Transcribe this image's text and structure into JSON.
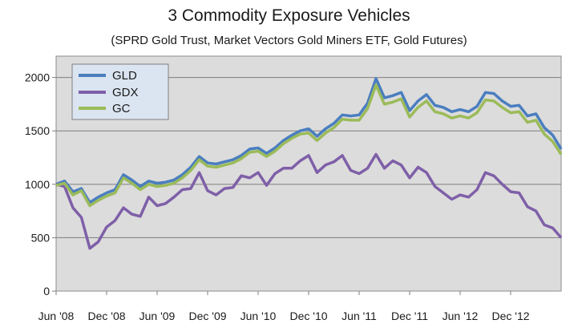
{
  "chart_data": {
    "type": "line",
    "title": "3 Commodity Exposure Vehicles",
    "subtitle": "(SPRD Gold Trust, Market Vectors Gold Miners ETF, Gold Futures)",
    "xlabel": "",
    "ylabel": "",
    "ylim": [
      0,
      2100
    ],
    "yticks": [
      0,
      500,
      1000,
      1500,
      2000
    ],
    "xlim": [
      "2008-06",
      "2013-06"
    ],
    "xticks": [
      "Jun '08",
      "Dec '08",
      "Jun '09",
      "Dec '09",
      "Jun '10",
      "Dec '10",
      "Jun '11",
      "Dec '11",
      "Jun '12",
      "Dec '12"
    ],
    "grid": "horizontal",
    "legend": "top-left",
    "series": [
      {
        "name": "GLD",
        "color": "#4a7ebf",
        "points": [
          [
            "2008-06",
            1000
          ],
          [
            "2008-07",
            1030
          ],
          [
            "2008-08",
            930
          ],
          [
            "2008-09",
            960
          ],
          [
            "2008-10",
            830
          ],
          [
            "2008-11",
            880
          ],
          [
            "2008-12",
            920
          ],
          [
            "2009-01",
            950
          ],
          [
            "2009-02",
            1090
          ],
          [
            "2009-03",
            1040
          ],
          [
            "2009-04",
            980
          ],
          [
            "2009-05",
            1030
          ],
          [
            "2009-06",
            1010
          ],
          [
            "2009-07",
            1020
          ],
          [
            "2009-08",
            1040
          ],
          [
            "2009-09",
            1090
          ],
          [
            "2009-10",
            1160
          ],
          [
            "2009-11",
            1260
          ],
          [
            "2009-12",
            1200
          ],
          [
            "2010-01",
            1190
          ],
          [
            "2010-02",
            1210
          ],
          [
            "2010-03",
            1230
          ],
          [
            "2010-04",
            1270
          ],
          [
            "2010-05",
            1330
          ],
          [
            "2010-06",
            1340
          ],
          [
            "2010-07",
            1290
          ],
          [
            "2010-08",
            1340
          ],
          [
            "2010-09",
            1410
          ],
          [
            "2010-10",
            1460
          ],
          [
            "2010-11",
            1500
          ],
          [
            "2010-12",
            1520
          ],
          [
            "2011-01",
            1450
          ],
          [
            "2011-02",
            1520
          ],
          [
            "2011-03",
            1570
          ],
          [
            "2011-04",
            1650
          ],
          [
            "2011-05",
            1640
          ],
          [
            "2011-06",
            1650
          ],
          [
            "2011-07",
            1760
          ],
          [
            "2011-08",
            1990
          ],
          [
            "2011-09",
            1810
          ],
          [
            "2011-10",
            1830
          ],
          [
            "2011-11",
            1860
          ],
          [
            "2011-12",
            1690
          ],
          [
            "2012-01",
            1780
          ],
          [
            "2012-02",
            1840
          ],
          [
            "2012-03",
            1740
          ],
          [
            "2012-04",
            1720
          ],
          [
            "2012-05",
            1680
          ],
          [
            "2012-06",
            1700
          ],
          [
            "2012-07",
            1680
          ],
          [
            "2012-08",
            1730
          ],
          [
            "2012-09",
            1860
          ],
          [
            "2012-10",
            1850
          ],
          [
            "2012-11",
            1780
          ],
          [
            "2012-12",
            1730
          ],
          [
            "2013-01",
            1740
          ],
          [
            "2013-02",
            1640
          ],
          [
            "2013-03",
            1660
          ],
          [
            "2013-04",
            1530
          ],
          [
            "2013-05",
            1460
          ],
          [
            "2013-06",
            1330
          ]
        ]
      },
      {
        "name": "GDX",
        "color": "#7f5fa8",
        "points": [
          [
            "2008-06",
            1000
          ],
          [
            "2008-07",
            980
          ],
          [
            "2008-08",
            780
          ],
          [
            "2008-09",
            690
          ],
          [
            "2008-10",
            400
          ],
          [
            "2008-11",
            460
          ],
          [
            "2008-12",
            600
          ],
          [
            "2009-01",
            660
          ],
          [
            "2009-02",
            780
          ],
          [
            "2009-03",
            720
          ],
          [
            "2009-04",
            700
          ],
          [
            "2009-05",
            880
          ],
          [
            "2009-06",
            800
          ],
          [
            "2009-07",
            820
          ],
          [
            "2009-08",
            880
          ],
          [
            "2009-09",
            950
          ],
          [
            "2009-10",
            960
          ],
          [
            "2009-11",
            1110
          ],
          [
            "2009-12",
            940
          ],
          [
            "2010-01",
            900
          ],
          [
            "2010-02",
            960
          ],
          [
            "2010-03",
            970
          ],
          [
            "2010-04",
            1080
          ],
          [
            "2010-05",
            1060
          ],
          [
            "2010-06",
            1110
          ],
          [
            "2010-07",
            990
          ],
          [
            "2010-08",
            1100
          ],
          [
            "2010-09",
            1150
          ],
          [
            "2010-10",
            1150
          ],
          [
            "2010-11",
            1220
          ],
          [
            "2010-12",
            1270
          ],
          [
            "2011-01",
            1110
          ],
          [
            "2011-02",
            1180
          ],
          [
            "2011-03",
            1210
          ],
          [
            "2011-04",
            1270
          ],
          [
            "2011-05",
            1130
          ],
          [
            "2011-06",
            1100
          ],
          [
            "2011-07",
            1150
          ],
          [
            "2011-08",
            1280
          ],
          [
            "2011-09",
            1150
          ],
          [
            "2011-10",
            1220
          ],
          [
            "2011-11",
            1180
          ],
          [
            "2011-12",
            1060
          ],
          [
            "2012-01",
            1160
          ],
          [
            "2012-02",
            1110
          ],
          [
            "2012-03",
            980
          ],
          [
            "2012-04",
            920
          ],
          [
            "2012-05",
            860
          ],
          [
            "2012-06",
            900
          ],
          [
            "2012-07",
            880
          ],
          [
            "2012-08",
            950
          ],
          [
            "2012-09",
            1110
          ],
          [
            "2012-10",
            1080
          ],
          [
            "2012-11",
            1000
          ],
          [
            "2012-12",
            930
          ],
          [
            "2013-01",
            920
          ],
          [
            "2013-02",
            790
          ],
          [
            "2013-03",
            750
          ],
          [
            "2013-04",
            620
          ],
          [
            "2013-05",
            590
          ],
          [
            "2013-06",
            500
          ]
        ]
      },
      {
        "name": "GC",
        "color": "#9bbb59",
        "points": [
          [
            "2008-06",
            990
          ],
          [
            "2008-07",
            1010
          ],
          [
            "2008-08",
            900
          ],
          [
            "2008-09",
            940
          ],
          [
            "2008-10",
            800
          ],
          [
            "2008-11",
            850
          ],
          [
            "2008-12",
            890
          ],
          [
            "2009-01",
            920
          ],
          [
            "2009-02",
            1060
          ],
          [
            "2009-03",
            1010
          ],
          [
            "2009-04",
            950
          ],
          [
            "2009-05",
            1000
          ],
          [
            "2009-06",
            980
          ],
          [
            "2009-07",
            990
          ],
          [
            "2009-08",
            1010
          ],
          [
            "2009-09",
            1060
          ],
          [
            "2009-10",
            1130
          ],
          [
            "2009-11",
            1230
          ],
          [
            "2009-12",
            1170
          ],
          [
            "2010-01",
            1160
          ],
          [
            "2010-02",
            1180
          ],
          [
            "2010-03",
            1200
          ],
          [
            "2010-04",
            1240
          ],
          [
            "2010-05",
            1300
          ],
          [
            "2010-06",
            1310
          ],
          [
            "2010-07",
            1260
          ],
          [
            "2010-08",
            1310
          ],
          [
            "2010-09",
            1380
          ],
          [
            "2010-10",
            1430
          ],
          [
            "2010-11",
            1470
          ],
          [
            "2010-12",
            1480
          ],
          [
            "2011-01",
            1410
          ],
          [
            "2011-02",
            1480
          ],
          [
            "2011-03",
            1530
          ],
          [
            "2011-04",
            1610
          ],
          [
            "2011-05",
            1600
          ],
          [
            "2011-06",
            1600
          ],
          [
            "2011-07",
            1710
          ],
          [
            "2011-08",
            1930
          ],
          [
            "2011-09",
            1750
          ],
          [
            "2011-10",
            1770
          ],
          [
            "2011-11",
            1800
          ],
          [
            "2011-12",
            1630
          ],
          [
            "2012-01",
            1720
          ],
          [
            "2012-02",
            1780
          ],
          [
            "2012-03",
            1680
          ],
          [
            "2012-04",
            1660
          ],
          [
            "2012-05",
            1620
          ],
          [
            "2012-06",
            1640
          ],
          [
            "2012-07",
            1620
          ],
          [
            "2012-08",
            1670
          ],
          [
            "2012-09",
            1790
          ],
          [
            "2012-10",
            1780
          ],
          [
            "2012-11",
            1720
          ],
          [
            "2012-12",
            1670
          ],
          [
            "2013-01",
            1680
          ],
          [
            "2013-02",
            1580
          ],
          [
            "2013-03",
            1600
          ],
          [
            "2013-04",
            1470
          ],
          [
            "2013-05",
            1400
          ],
          [
            "2013-06",
            1280
          ]
        ]
      }
    ]
  }
}
